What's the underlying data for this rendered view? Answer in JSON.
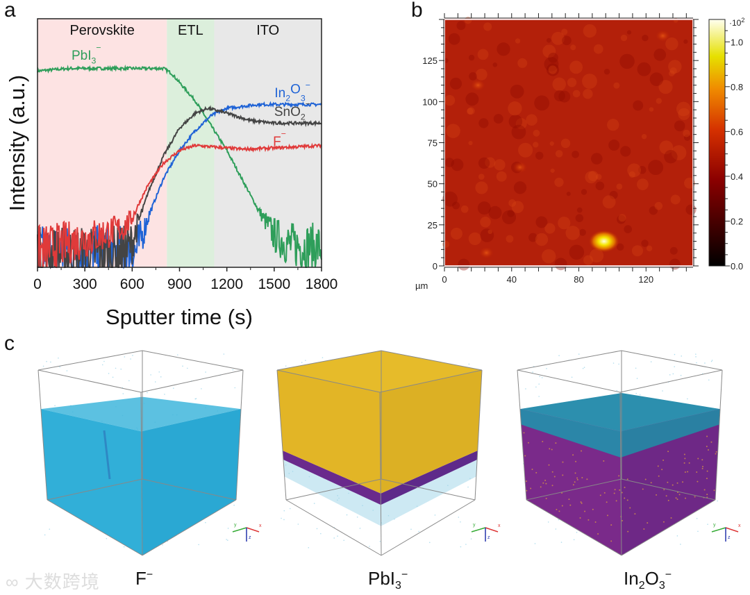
{
  "panels": {
    "a": "a",
    "b": "b",
    "c": "c"
  },
  "chart_data": [
    {
      "type": "line",
      "panel": "a",
      "xlabel": "Sputter time (s)",
      "ylabel": "Intensity (a.u.)",
      "xlim": [
        0,
        1800
      ],
      "ylim": [
        0,
        1
      ],
      "xticks": [
        "0",
        "300",
        "600",
        "900",
        "1200",
        "1500",
        "1800"
      ],
      "regions": [
        {
          "name": "Perovskite",
          "from": 0,
          "to": 820,
          "color": "#fde3e3"
        },
        {
          "name": "ETL",
          "from": 820,
          "to": 1120,
          "color": "#dcefdc"
        },
        {
          "name": "ITO",
          "from": 1120,
          "to": 1800,
          "color": "#e8e8e8"
        }
      ],
      "series": [
        {
          "name": {
            "base": "PbI",
            "sub": "3",
            "sup": "−"
          },
          "color": "#2e9e5a",
          "x": [
            0,
            200,
            800,
            850,
            1000,
            1200,
            1400,
            1500,
            1600,
            1800
          ],
          "y": [
            0.79,
            0.8,
            0.8,
            0.78,
            0.67,
            0.47,
            0.23,
            0.13,
            0.09,
            0.08
          ]
        },
        {
          "name": {
            "base": "In",
            "sub": "2",
            "mid": "O",
            "sub2": "3",
            "sup": "−"
          },
          "color": "#1f63d6",
          "x": [
            0,
            620,
            650,
            700,
            800,
            900,
            1000,
            1100,
            1200,
            1400,
            1800
          ],
          "y": [
            0.06,
            0.06,
            0.1,
            0.2,
            0.36,
            0.47,
            0.55,
            0.61,
            0.64,
            0.655,
            0.655
          ]
        },
        {
          "name": {
            "base": "SnO",
            "sub": "2",
            "sup": "−"
          },
          "color": "#444444",
          "x": [
            0,
            560,
            600,
            650,
            700,
            800,
            900,
            1000,
            1080,
            1200,
            1350,
            1500,
            1800
          ],
          "y": [
            0.05,
            0.06,
            0.1,
            0.2,
            0.3,
            0.45,
            0.56,
            0.62,
            0.64,
            0.62,
            0.59,
            0.58,
            0.58
          ]
        },
        {
          "name": {
            "base": "F",
            "sup": "−"
          },
          "color": "#e03a3a",
          "x": [
            0,
            200,
            400,
            550,
            600,
            700,
            800,
            900,
            1000,
            1200,
            1300,
            1500,
            1800
          ],
          "y": [
            0.06,
            0.1,
            0.13,
            0.16,
            0.2,
            0.33,
            0.42,
            0.47,
            0.49,
            0.48,
            0.475,
            0.48,
            0.49
          ]
        }
      ]
    },
    {
      "type": "heatmap",
      "panel": "b",
      "xunit": "µm",
      "xlim": [
        0,
        148
      ],
      "ylim": [
        0,
        150
      ],
      "xticks": [
        "0",
        "40",
        "80",
        "120"
      ],
      "yticks": [
        "0",
        "25",
        "50",
        "75",
        "100",
        "125"
      ],
      "colorbar": {
        "ticks": [
          "0.0",
          "0.2",
          "0.4",
          "0.6",
          "0.8",
          "1.0"
        ],
        "multiplier": "·10",
        "multiplier_exp": "2",
        "range": [
          0,
          1.1
        ]
      },
      "background_level": 0.42,
      "hotspots": [
        {
          "x": 95,
          "y": 15,
          "value": 1.1
        },
        {
          "x": 25,
          "y": 8,
          "value": 0.55
        },
        {
          "x": 20,
          "y": 110,
          "value": 0.5
        },
        {
          "x": 45,
          "y": 60,
          "value": 0.5
        },
        {
          "x": 130,
          "y": 140,
          "value": 0.5
        }
      ]
    }
  ],
  "cubes": [
    {
      "label": {
        "base": "F",
        "sup": "−"
      }
    },
    {
      "label": {
        "base": "PbI",
        "sub": "3",
        "sup": "−"
      }
    },
    {
      "label": {
        "base": "In",
        "sub": "2",
        "mid": "O",
        "sub2": "3",
        "sup": "−"
      }
    }
  ],
  "axis_triad": {
    "x": "x",
    "y": "y",
    "z": "z"
  },
  "watermark": "大数跨境"
}
